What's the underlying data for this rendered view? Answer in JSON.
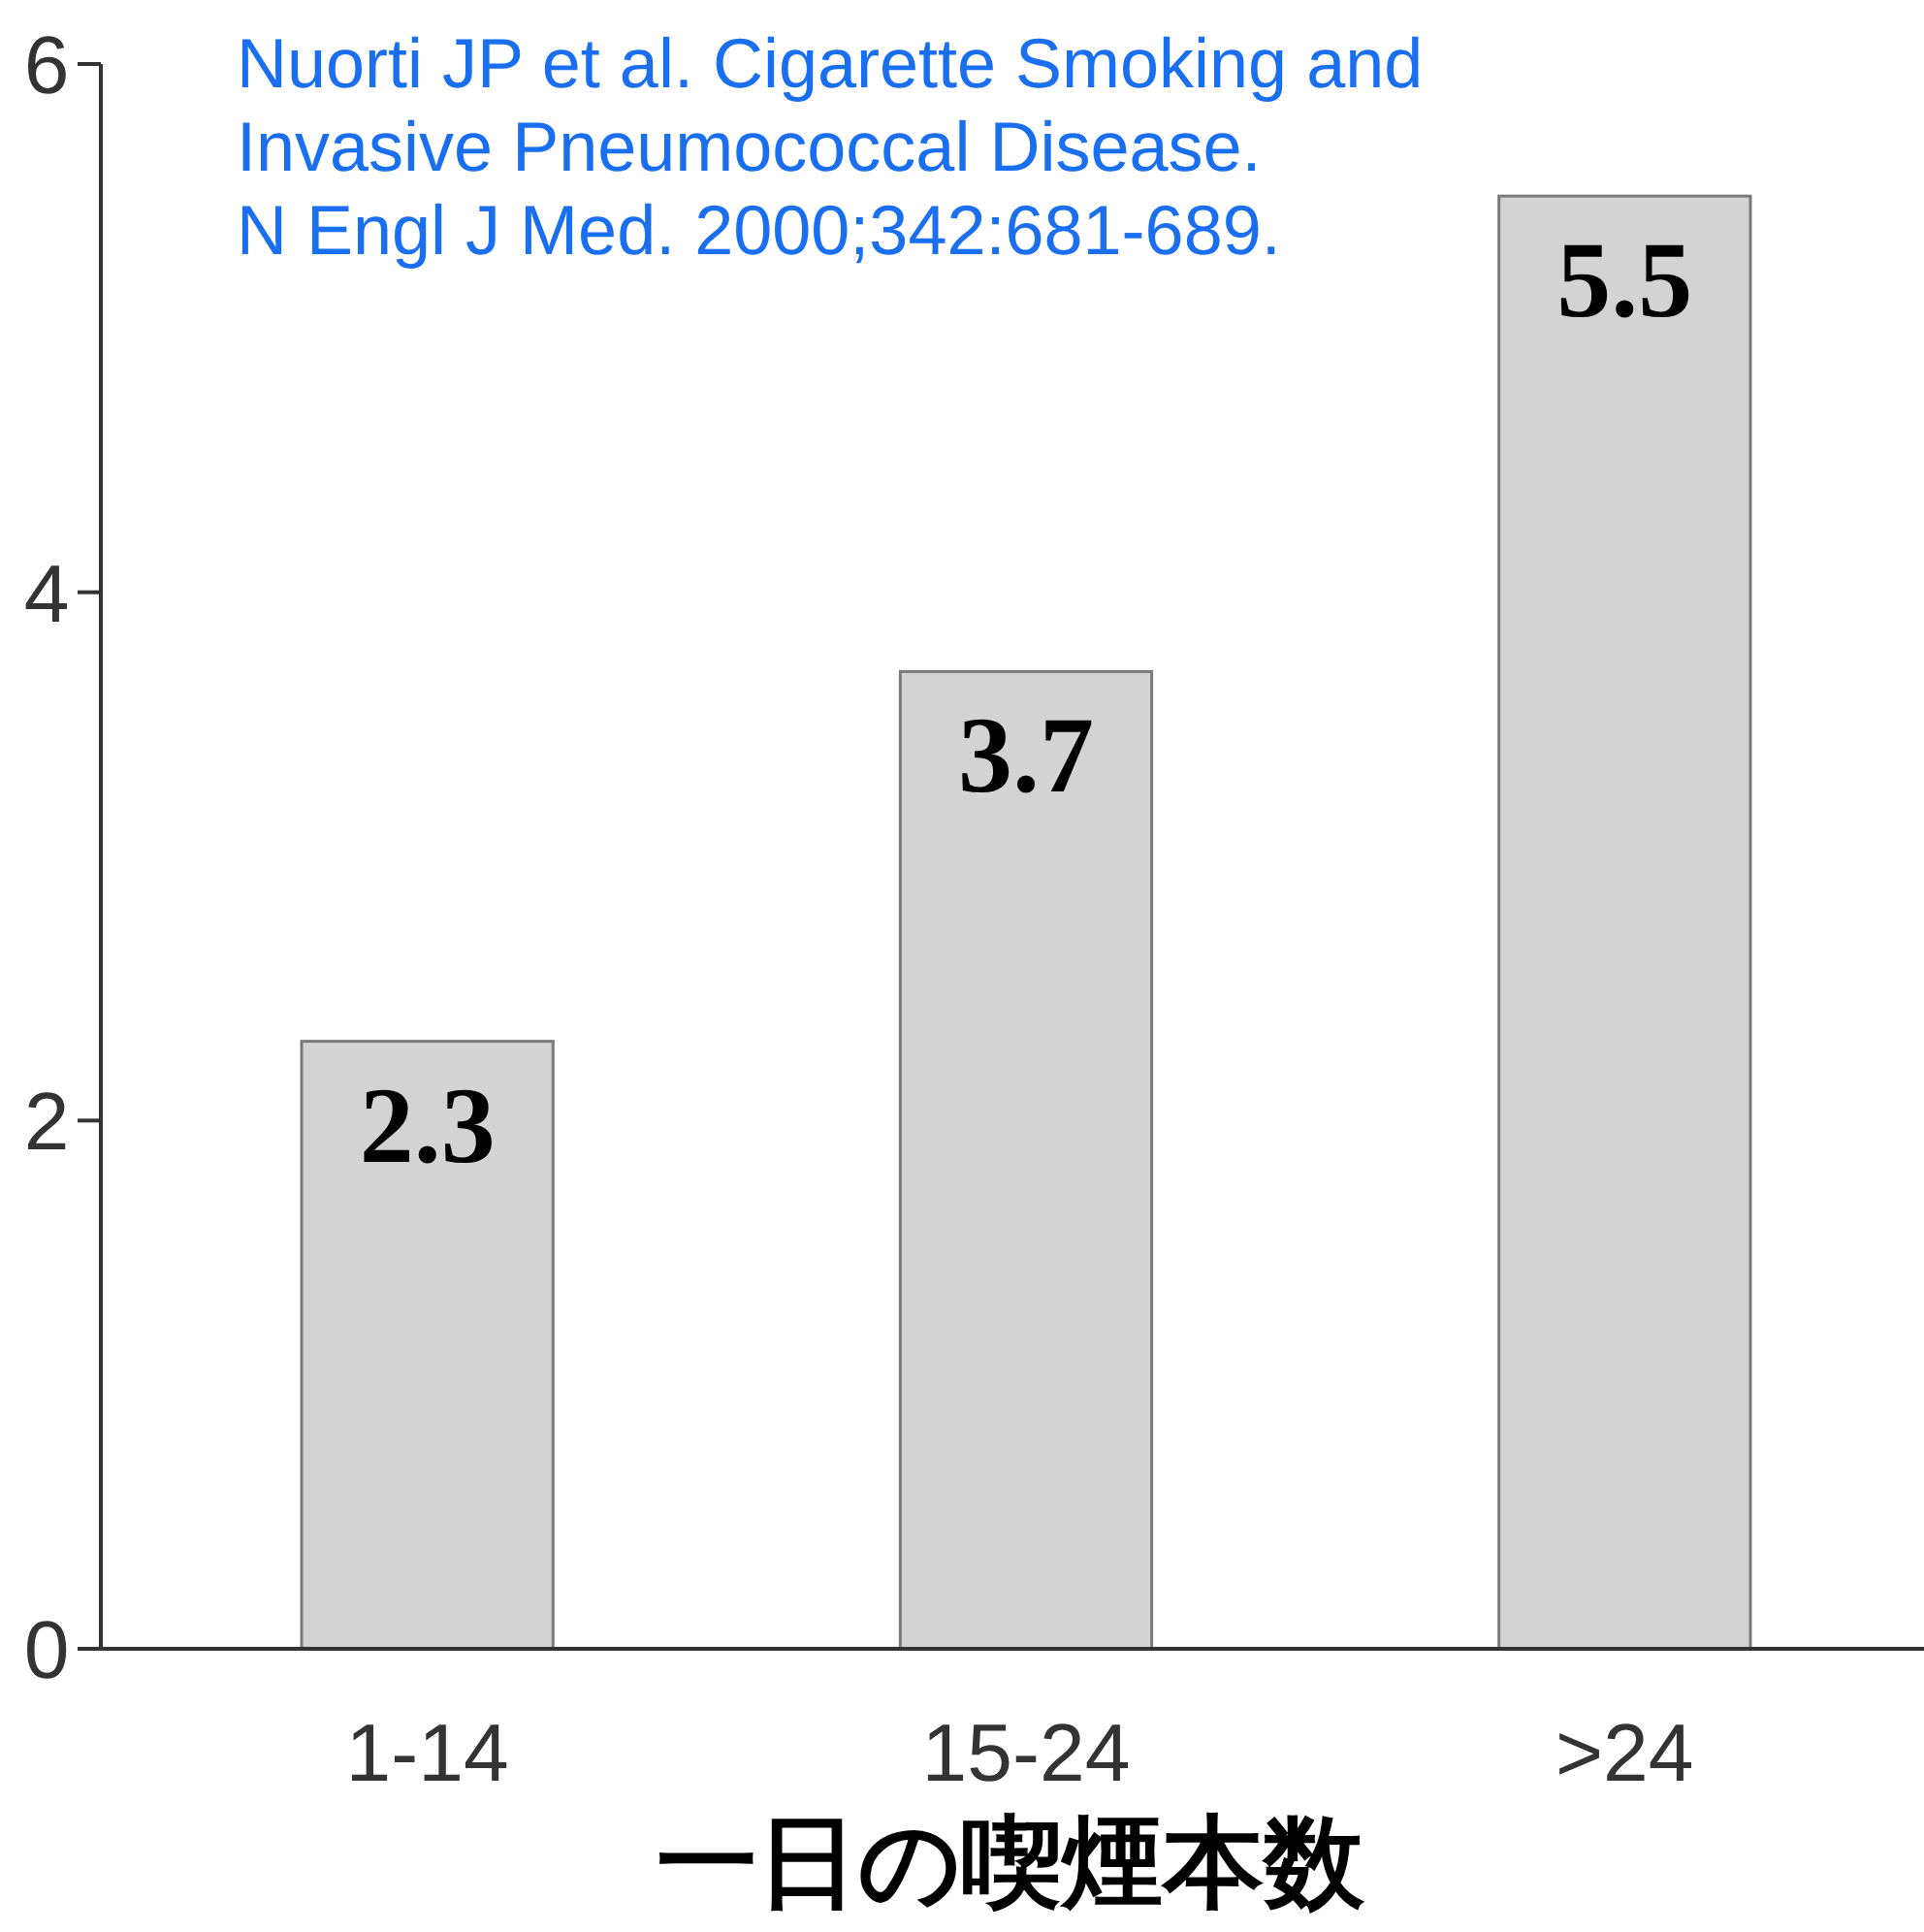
{
  "chart_data": {
    "type": "bar",
    "categories": [
      "1-14",
      "15-24",
      ">24"
    ],
    "values": [
      2.3,
      3.7,
      5.5
    ],
    "color": "#d3d3d3",
    "data_labels": true,
    "ylim": [
      0,
      6
    ],
    "yticks": [
      0,
      2,
      4,
      6
    ],
    "xlabel": "一日の喫煙本数",
    "annotations": [
      "Nuorti JP et al. Cigarette Smoking and\nInvasive Pneumococcal Disease.\nN Engl J Med. 2000;342:681-689."
    ]
  }
}
